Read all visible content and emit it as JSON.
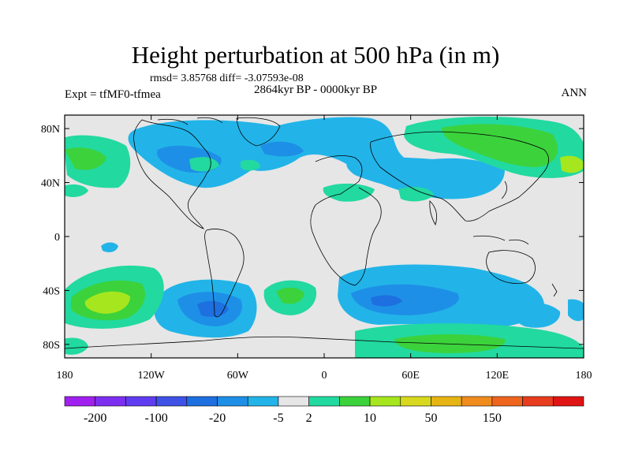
{
  "header": {
    "title": "Height perturbation at 500 hPa (in m)",
    "stats": "rmsd= 3.85768 diff= -3.07593e-08",
    "period": "2864kyr BP - 0000kyr BP",
    "experiment": "Expt = tfMF0-tfmea",
    "season": "ANN"
  },
  "axes": {
    "lat_ticks": [
      "80N",
      "40N",
      "0",
      "40S",
      "80S"
    ],
    "lon_ticks": [
      "180",
      "120W",
      "60W",
      "0",
      "60E",
      "120E",
      "180"
    ]
  },
  "colorbar": {
    "colors": [
      "#a020f0",
      "#7d2ff0",
      "#5f3cf0",
      "#3f52e6",
      "#1e6fe0",
      "#1e8fe6",
      "#22b4e8",
      "#e6e6e6",
      "#22d9a0",
      "#3cd23c",
      "#a6e61e",
      "#d8d81e",
      "#e6b414",
      "#f08c1e",
      "#ef641e",
      "#e83c1e",
      "#e01414"
    ],
    "labels": [
      "-200",
      "-100",
      "-20",
      "-5",
      "2",
      "10",
      "50",
      "150"
    ],
    "label_after_box": [
      1,
      3,
      5,
      7,
      8,
      10,
      12,
      14
    ]
  },
  "colors": {
    "neutral": "#e6e6e6",
    "blue_light": "#22b4e8",
    "blue_mid": "#1e8fe6",
    "blue_dark": "#1e6fe0",
    "green_light": "#22d9a0",
    "green_mid": "#3cd23c",
    "yellow_green": "#a6e61e",
    "coast": "#000000"
  }
}
